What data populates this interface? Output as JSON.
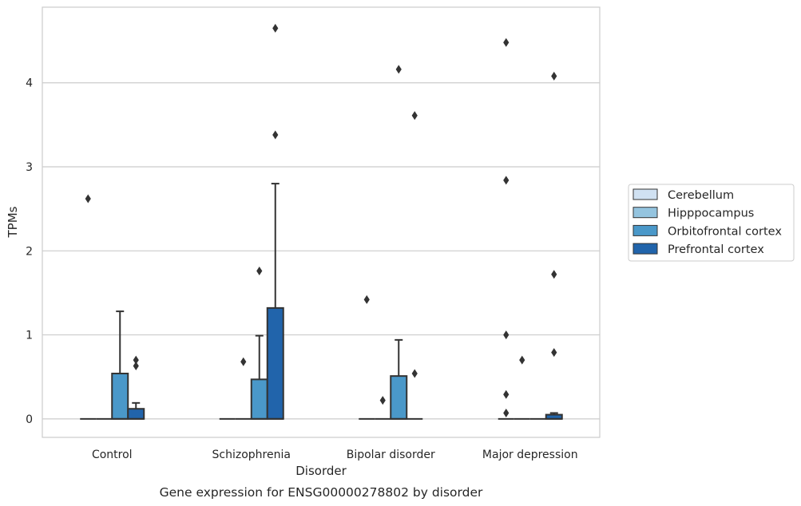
{
  "chart_data": {
    "type": "box",
    "title": "Gene expression for ENSG00000278802 by disorder",
    "xlabel": "Disorder",
    "ylabel": "TPMs",
    "categories": [
      "Control",
      "Schizophrenia",
      "Bipolar disorder",
      "Major depression"
    ],
    "ylim": [
      -0.22,
      4.9
    ],
    "yticks": [
      "0",
      "1",
      "2",
      "3",
      "4"
    ],
    "grid": true,
    "legend_position": "right",
    "series": [
      {
        "name": "Cerebellum",
        "color": "#d0e1f2",
        "boxes": [
          {
            "q1": 0,
            "median": 0,
            "q3": 0,
            "whisker_low": 0,
            "whisker_high": 0,
            "outliers": [
              2.62
            ]
          },
          {
            "q1": 0,
            "median": 0,
            "q3": 0,
            "whisker_low": 0,
            "whisker_high": 0,
            "outliers": []
          },
          {
            "q1": 0,
            "median": 0,
            "q3": 0,
            "whisker_low": 0,
            "whisker_high": 0,
            "outliers": [
              1.42
            ]
          },
          {
            "q1": 0,
            "median": 0,
            "q3": 0,
            "whisker_low": 0,
            "whisker_high": 0,
            "outliers": [
              4.48,
              2.84,
              1.0,
              0.29,
              0.07
            ]
          }
        ]
      },
      {
        "name": "Hipppocampus",
        "color": "#94c4df",
        "boxes": [
          {
            "q1": 0,
            "median": 0,
            "q3": 0,
            "whisker_low": 0,
            "whisker_high": 0,
            "outliers": []
          },
          {
            "q1": 0,
            "median": 0,
            "q3": 0,
            "whisker_low": 0,
            "whisker_high": 0,
            "outliers": [
              0.68
            ]
          },
          {
            "q1": 0,
            "median": 0,
            "q3": 0,
            "whisker_low": 0,
            "whisker_high": 0,
            "outliers": [
              0.22
            ]
          },
          {
            "q1": 0,
            "median": 0,
            "q3": 0,
            "whisker_low": 0,
            "whisker_high": 0,
            "outliers": [
              0.7
            ]
          }
        ]
      },
      {
        "name": "Orbitofrontal cortex",
        "color": "#4a98c9",
        "boxes": [
          {
            "q1": 0,
            "median": 0,
            "q3": 0.54,
            "whisker_low": 0,
            "whisker_high": 1.28,
            "outliers": []
          },
          {
            "q1": 0,
            "median": 0,
            "q3": 0.47,
            "whisker_low": 0,
            "whisker_high": 0.99,
            "outliers": [
              1.76
            ]
          },
          {
            "q1": 0,
            "median": 0,
            "q3": 0.51,
            "whisker_low": 0,
            "whisker_high": 0.94,
            "outliers": [
              4.16
            ]
          },
          {
            "q1": 0,
            "median": 0,
            "q3": 0,
            "whisker_low": 0,
            "whisker_high": 0,
            "outliers": []
          }
        ]
      },
      {
        "name": "Prefrontal cortex",
        "color": "#2164ab",
        "boxes": [
          {
            "q1": 0,
            "median": 0,
            "q3": 0.12,
            "whisker_low": 0,
            "whisker_high": 0.19,
            "outliers": [
              0.7,
              0.63
            ]
          },
          {
            "q1": 0,
            "median": 0,
            "q3": 1.32,
            "whisker_low": 0,
            "whisker_high": 2.8,
            "outliers": [
              4.65,
              3.38
            ]
          },
          {
            "q1": 0,
            "median": 0,
            "q3": 0,
            "whisker_low": 0,
            "whisker_high": 0,
            "outliers": [
              3.61,
              0.54
            ]
          },
          {
            "q1": 0,
            "median": 0,
            "q3": 0.05,
            "whisker_low": 0,
            "whisker_high": 0.07,
            "outliers": [
              4.08,
              1.72,
              0.79
            ]
          }
        ]
      }
    ]
  }
}
